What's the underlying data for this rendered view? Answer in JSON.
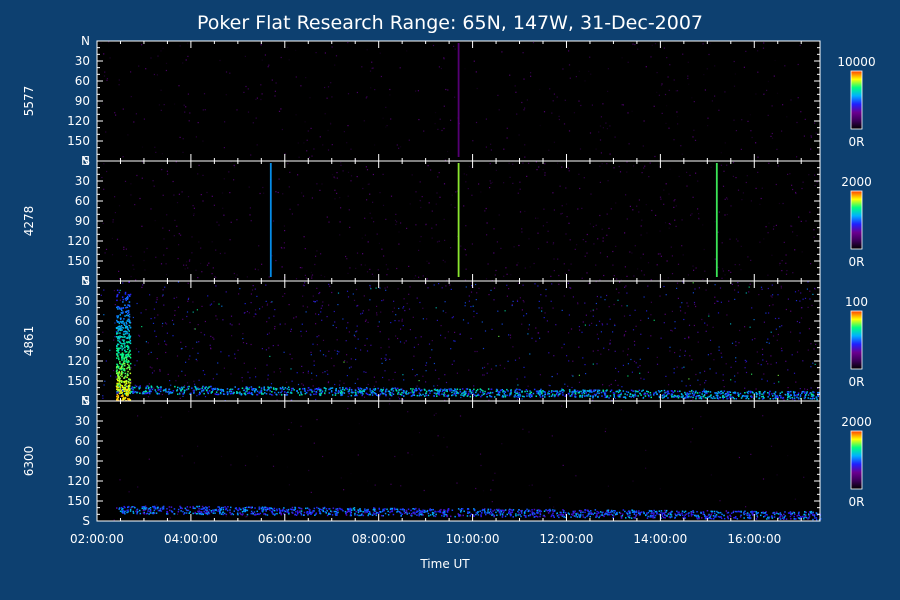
{
  "chart_data": {
    "type": "heatmap",
    "title": "Poker Flat Research Range: 65N, 147W, 31-Dec-2007",
    "xlabel": "Time UT",
    "x_ticks": [
      "02:00:00",
      "04:00:00",
      "06:00:00",
      "08:00:00",
      "10:00:00",
      "12:00:00",
      "14:00:00",
      "16:00:00"
    ],
    "x_tick_hours": [
      2,
      4,
      6,
      8,
      10,
      12,
      14,
      16
    ],
    "xlim_hours": [
      2,
      17.4
    ],
    "y_ticks": [
      "N",
      "30",
      "60",
      "90",
      "120",
      "150",
      "S"
    ],
    "y_tick_values": [
      0,
      30,
      60,
      90,
      120,
      150,
      180
    ],
    "ylim": [
      0,
      180
    ],
    "colormap_colors": [
      "#000000",
      "#3a0058",
      "#6a0090",
      "#2020ff",
      "#00b0ff",
      "#00ff80",
      "#ffff00",
      "#ff4000"
    ],
    "panels": [
      {
        "label": "5577",
        "colorbar": {
          "max_label": "10000",
          "min_label": "0R"
        },
        "features": [
          {
            "kind": "background",
            "intensity": 0.18
          },
          {
            "kind": "streak",
            "hour": 9.7,
            "intensity": 0.25
          }
        ]
      },
      {
        "label": "4278",
        "colorbar": {
          "max_label": "2000",
          "min_label": "0R"
        },
        "features": [
          {
            "kind": "background",
            "intensity": 0.3
          },
          {
            "kind": "streak",
            "hour": 5.7,
            "intensity": 0.55
          },
          {
            "kind": "streak",
            "hour": 9.7,
            "intensity": 0.8
          },
          {
            "kind": "streak",
            "hour": 15.2,
            "intensity": 0.75
          }
        ]
      },
      {
        "label": "4861",
        "colorbar": {
          "max_label": "100",
          "min_label": "0R"
        },
        "features": [
          {
            "kind": "background",
            "intensity": 0.5
          },
          {
            "kind": "south-band",
            "from_hour": 2.4,
            "to_hour": 17.4,
            "intensity": 0.7
          },
          {
            "kind": "edge-burst",
            "from_hour": 2.4,
            "to_hour": 2.7,
            "intensity": 0.85
          }
        ]
      },
      {
        "label": "6300",
        "colorbar": {
          "max_label": "2000",
          "min_label": "0R"
        },
        "features": [
          {
            "kind": "background",
            "intensity": 0.05
          },
          {
            "kind": "south-band",
            "from_hour": 2.4,
            "to_hour": 17.4,
            "intensity": 0.6
          }
        ]
      }
    ]
  }
}
